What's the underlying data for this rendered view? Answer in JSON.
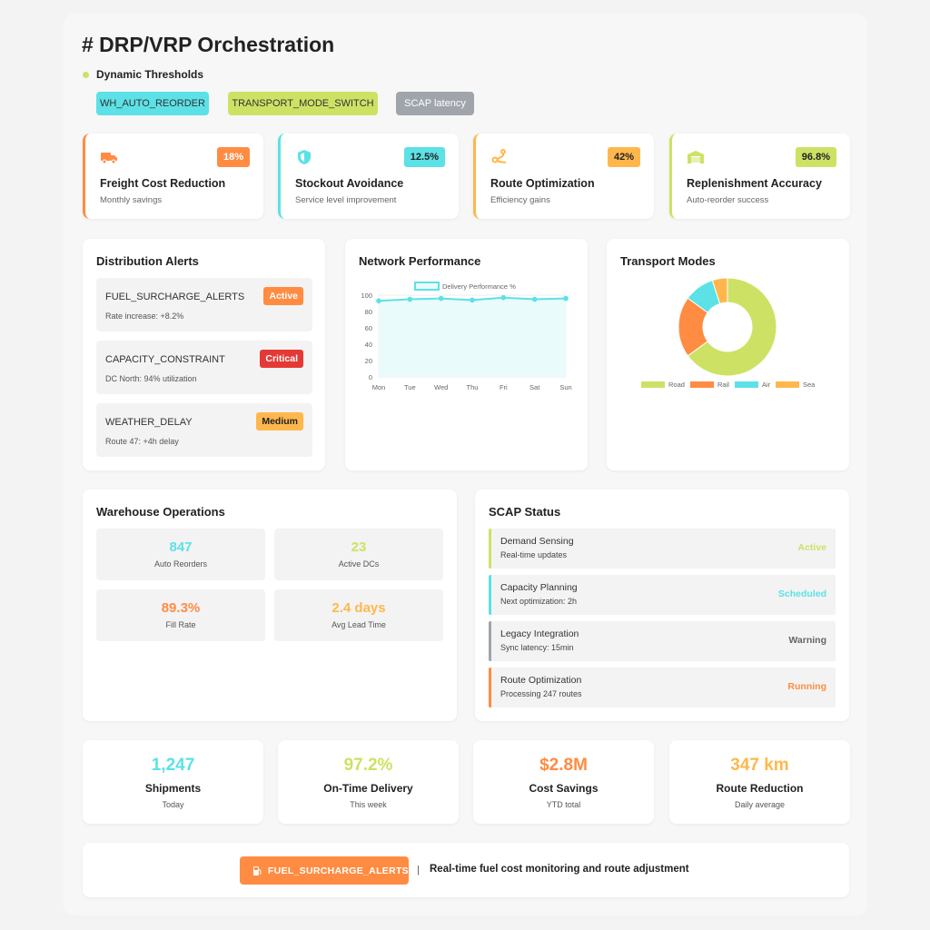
{
  "title": "# DRP/VRP Orchestration",
  "threshold_label": "Dynamic Thresholds",
  "tags": [
    "WH_AUTO_REORDER",
    "TRANSPORT_MODE_SWITCH",
    "SCAP latency"
  ],
  "colors": {
    "orange": "#ff8c42",
    "cyan": "#5ce1e6",
    "amber": "#ffb74d",
    "green": "#cde264",
    "red": "#e53935",
    "gray": "#a0a4ab"
  },
  "kpis": [
    {
      "icon": "truck-icon",
      "badge": "18%",
      "title": "Freight Cost Reduction",
      "sub": "Monthly savings"
    },
    {
      "icon": "shield-icon",
      "badge": "12.5%",
      "title": "Stockout Avoidance",
      "sub": "Service level improvement"
    },
    {
      "icon": "route-icon",
      "badge": "42%",
      "title": "Route Optimization",
      "sub": "Efficiency gains"
    },
    {
      "icon": "warehouse-icon",
      "badge": "96.8%",
      "title": "Replenishment Accuracy",
      "sub": "Auto-reorder success"
    }
  ],
  "alerts": {
    "title": "Distribution Alerts",
    "items": [
      {
        "name": "FUEL_SURCHARGE_ALERTS",
        "badge": "Active",
        "detail": "Rate increase: +8.2%"
      },
      {
        "name": "CAPACITY_CONSTRAINT",
        "badge": "Critical",
        "detail": "DC North: 94% utilization"
      },
      {
        "name": "WEATHER_DELAY",
        "badge": "Medium",
        "detail": "Route 47: +4h delay"
      }
    ]
  },
  "network": {
    "title": "Network Performance"
  },
  "transport": {
    "title": "Transport Modes"
  },
  "chart_data": [
    {
      "type": "line",
      "series": [
        {
          "name": "Delivery Performance %",
          "values": [
            93,
            95,
            96,
            94,
            97,
            95,
            96
          ]
        }
      ],
      "categories": [
        "Mon",
        "Tue",
        "Wed",
        "Thu",
        "Fri",
        "Sat",
        "Sun"
      ],
      "ylim": [
        0,
        100
      ],
      "yticks": [
        0,
        20,
        40,
        60,
        80,
        100
      ],
      "grid": true,
      "legend": "top",
      "fill": true
    },
    {
      "type": "pie",
      "donut": true,
      "categories": [
        "Road",
        "Rail",
        "Air",
        "Sea"
      ],
      "values": [
        65,
        20,
        10,
        5
      ],
      "legend": "bottom"
    }
  ],
  "warehouse": {
    "title": "Warehouse Operations",
    "items": [
      {
        "value": "847",
        "label": "Auto Reorders"
      },
      {
        "value": "23",
        "label": "Active DCs"
      },
      {
        "value": "89.3%",
        "label": "Fill Rate"
      },
      {
        "value": "2.4 days",
        "label": "Avg Lead Time"
      }
    ]
  },
  "scap": {
    "title": "SCAP Status",
    "items": [
      {
        "name": "Demand Sensing",
        "detail": "Real-time updates",
        "status": "Active"
      },
      {
        "name": "Capacity Planning",
        "detail": "Next optimization: 2h",
        "status": "Scheduled"
      },
      {
        "name": "Legacy Integration",
        "detail": "Sync latency: 15min",
        "status": "Warning"
      },
      {
        "name": "Route Optimization",
        "detail": "Processing 247 routes",
        "status": "Running"
      }
    ]
  },
  "stats": [
    {
      "value": "1,247",
      "title": "Shipments",
      "sub": "Today"
    },
    {
      "value": "97.2%",
      "title": "On-Time Delivery",
      "sub": "This week"
    },
    {
      "value": "$2.8M",
      "title": "Cost Savings",
      "sub": "YTD total"
    },
    {
      "value": "347 km",
      "title": "Route Reduction",
      "sub": "Daily average"
    }
  ],
  "banner": {
    "button": "FUEL_SURCHARGE_ALERTS",
    "separator": "|",
    "text": "Real-time fuel cost monitoring and route adjustment"
  }
}
